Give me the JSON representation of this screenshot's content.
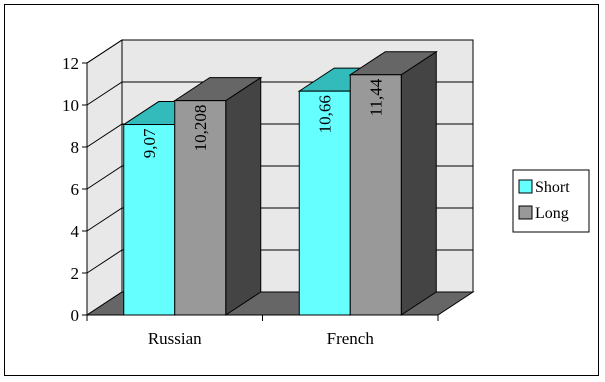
{
  "chart_data": {
    "type": "bar",
    "categories": [
      "Russian",
      "French"
    ],
    "series": [
      {
        "name": "Short",
        "values": [
          9.07,
          10.66
        ],
        "labels": [
          "9,07",
          "10,66"
        ],
        "color": "#66ffff"
      },
      {
        "name": "Long",
        "values": [
          10.208,
          11.44
        ],
        "labels": [
          "10,208",
          "11,44"
        ],
        "color": "#999999"
      }
    ],
    "ylim": [
      0,
      12
    ],
    "yticks": [
      "0",
      "2",
      "4",
      "6",
      "8",
      "10",
      "12"
    ],
    "grid": true,
    "legend": "right",
    "three_d": true
  }
}
